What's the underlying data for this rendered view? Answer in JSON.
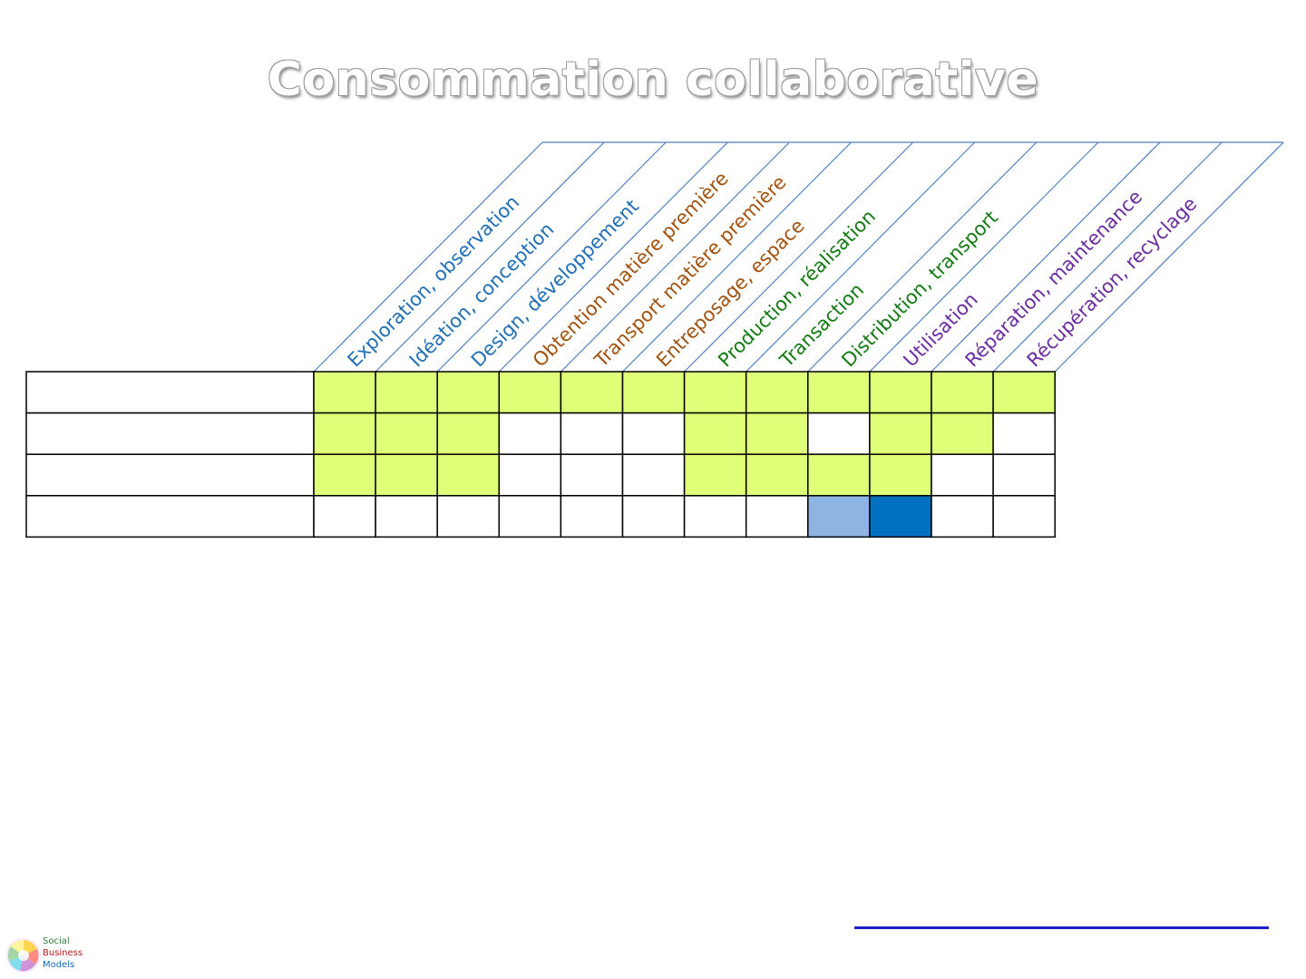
{
  "title": "Consommation collaborative",
  "colors": {
    "blue": "#1f6eb6",
    "brown": "#a2520e",
    "green": "#137a12",
    "purple": "#6a2ca0",
    "guide_line": "#4f81bd",
    "cell_yellow": "#dfff78",
    "cell_light_blue": "#8db4e2",
    "cell_blue": "#0070c0",
    "cell_empty": "#ffffff"
  },
  "columns": [
    {
      "label": "Exploration, observation",
      "color": "blue"
    },
    {
      "label": "Idéation, conception",
      "color": "blue"
    },
    {
      "label": "Design, développement",
      "color": "blue"
    },
    {
      "label": "Obtention matière première",
      "color": "brown"
    },
    {
      "label": "Transport matière première",
      "color": "brown"
    },
    {
      "label": "Entreposage, espace",
      "color": "brown"
    },
    {
      "label": "Production, réalisation",
      "color": "green"
    },
    {
      "label": "Transaction",
      "color": "green"
    },
    {
      "label": "Distribution, transport",
      "color": "green"
    },
    {
      "label": "Utilisation",
      "color": "purple"
    },
    {
      "label": "Réparation, maintenance",
      "color": "purple"
    },
    {
      "label": "Récupération, recyclage",
      "color": "purple"
    }
  ],
  "rows": [
    {
      "label": "",
      "cells": [
        "cell_yellow",
        "cell_yellow",
        "cell_yellow",
        "cell_yellow",
        "cell_yellow",
        "cell_yellow",
        "cell_yellow",
        "cell_yellow",
        "cell_yellow",
        "cell_yellow",
        "cell_yellow",
        "cell_yellow"
      ]
    },
    {
      "label": "",
      "cells": [
        "cell_yellow",
        "cell_yellow",
        "cell_yellow",
        "cell_empty",
        "cell_empty",
        "cell_empty",
        "cell_yellow",
        "cell_yellow",
        "cell_empty",
        "cell_yellow",
        "cell_yellow",
        "cell_empty"
      ]
    },
    {
      "label": "",
      "cells": [
        "cell_yellow",
        "cell_yellow",
        "cell_yellow",
        "cell_empty",
        "cell_empty",
        "cell_empty",
        "cell_yellow",
        "cell_yellow",
        "cell_yellow",
        "cell_yellow",
        "cell_empty",
        "cell_empty"
      ]
    },
    {
      "label": "",
      "cells": [
        "cell_empty",
        "cell_empty",
        "cell_empty",
        "cell_empty",
        "cell_empty",
        "cell_empty",
        "cell_empty",
        "cell_empty",
        "cell_light_blue",
        "cell_blue",
        "cell_empty",
        "cell_empty"
      ]
    }
  ],
  "logo": {
    "line1": "Social",
    "line2": "Business",
    "line3": "Models",
    "line1_color": "#2e7d32",
    "line2_color": "#b71c1c",
    "line3_color": "#1565c0"
  }
}
